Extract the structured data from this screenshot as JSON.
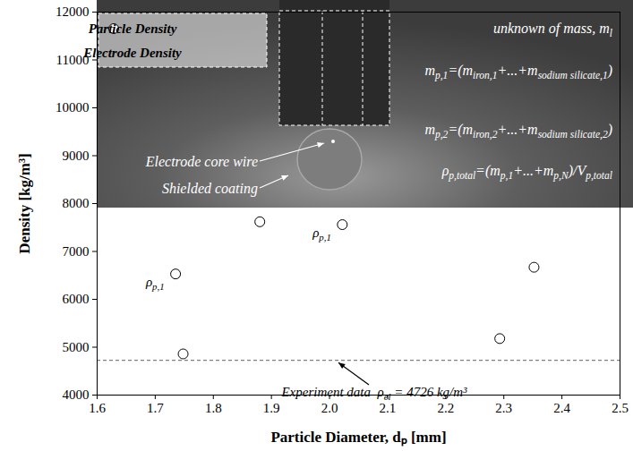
{
  "chart_data": {
    "type": "scatter",
    "x_label": "Particle Diameter, dₚ [mm]",
    "y_label": "Density [kg/m³]",
    "xlim": [
      1.6,
      2.5
    ],
    "xticks": [
      1.6,
      1.7,
      1.8,
      1.9,
      {
        "value": 2,
        "label": "2.0"
      },
      2.1,
      2.2,
      2.3,
      2.4,
      2.5
    ],
    "ylim": [
      4000,
      12000
    ],
    "yticks": [
      4000,
      5000,
      6000,
      7000,
      8000,
      9000,
      10000,
      11000,
      12000
    ],
    "legend": "top-left",
    "series": [
      {
        "name": "Particle Density",
        "type": "scatter",
        "marker": "circle-open",
        "color": "#000000",
        "x": [
          1.735,
          1.748,
          1.88,
          2.022,
          2.293,
          2.352
        ],
        "values": [
          6530,
          4860,
          7620,
          7560,
          5180,
          6670
        ],
        "point_labels": [
          [
            "ρ",
            "p,1"
          ],
          null,
          null,
          [
            "ρ",
            "p,1"
          ],
          null,
          null
        ]
      },
      {
        "name": "Electrode Density",
        "type": "line",
        "line_style": "dashed",
        "color": "#808080",
        "values": [
          4726
        ]
      }
    ],
    "annotations": [
      {
        "text": [
          "Experiment data  ρ",
          "el",
          " = 4726 kg/m³"
        ]
      },
      {
        "text": [
          "Electrode core wire"
        ]
      },
      {
        "text": [
          "Shielded coating"
        ]
      },
      {
        "text": [
          "unknown of mass, m",
          "l"
        ]
      },
      {
        "text": [
          "m",
          "p,1",
          "=(m",
          "iron,1",
          "+...+m",
          "sodium silicate,1",
          ")"
        ]
      },
      {
        "text": [
          "m",
          "p,2",
          "=(m",
          "iron,2",
          "+...+m",
          "sodium silicate,2",
          ")"
        ]
      },
      {
        "text": [
          "ρ",
          "p,total",
          "=(m",
          "p,1",
          "+...+m",
          "p,N",
          ")/V",
          "p,total"
        ]
      }
    ]
  }
}
